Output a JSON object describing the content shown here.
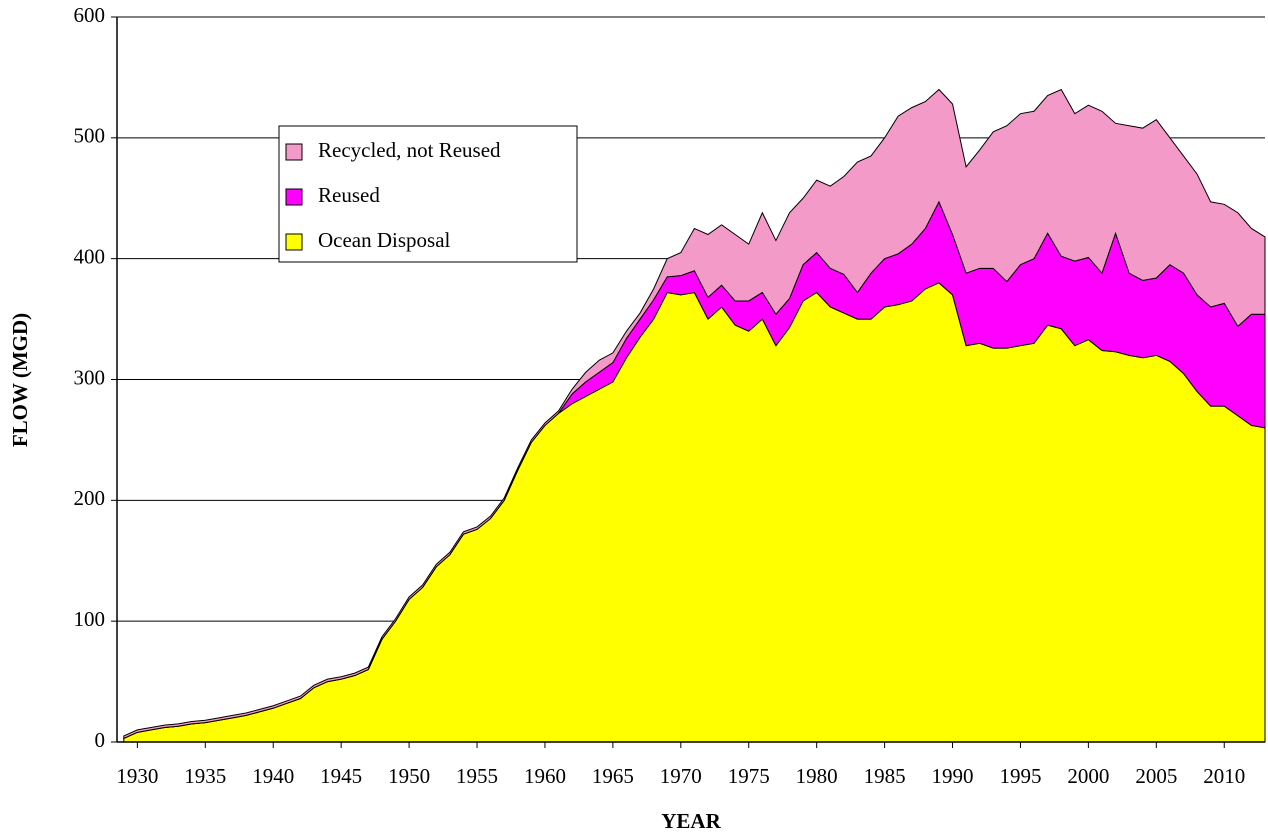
{
  "chart_data": {
    "type": "stacked_area",
    "x_label": "YEAR",
    "y_label": "FLOW (MGD)",
    "x": [
      1929,
      1930,
      1931,
      1932,
      1933,
      1934,
      1935,
      1936,
      1937,
      1938,
      1939,
      1940,
      1941,
      1942,
      1943,
      1944,
      1945,
      1946,
      1947,
      1948,
      1949,
      1950,
      1951,
      1952,
      1953,
      1954,
      1955,
      1956,
      1957,
      1958,
      1959,
      1960,
      1961,
      1962,
      1963,
      1964,
      1965,
      1966,
      1967,
      1968,
      1969,
      1970,
      1971,
      1972,
      1973,
      1974,
      1975,
      1976,
      1977,
      1978,
      1979,
      1980,
      1981,
      1982,
      1983,
      1984,
      1985,
      1986,
      1987,
      1988,
      1989,
      1990,
      1991,
      1992,
      1993,
      1994,
      1995,
      1996,
      1997,
      1998,
      1999,
      2000,
      2001,
      2002,
      2003,
      2004,
      2005,
      2006,
      2007,
      2008,
      2009,
      2010,
      2011,
      2012,
      2013
    ],
    "series": [
      {
        "name": "Ocean Disposal",
        "color": "#ffff00",
        "values": [
          3,
          8,
          10,
          12,
          13,
          15,
          16,
          18,
          20,
          22,
          25,
          28,
          32,
          36,
          45,
          50,
          52,
          55,
          60,
          85,
          100,
          118,
          128,
          145,
          155,
          172,
          176,
          185,
          200,
          225,
          248,
          262,
          272,
          280,
          286,
          292,
          298,
          318,
          335,
          350,
          372,
          370,
          372,
          350,
          360,
          345,
          340,
          350,
          328,
          343,
          365,
          372,
          360,
          355,
          350,
          350,
          360,
          362,
          365,
          375,
          380,
          370,
          328,
          330,
          326,
          326,
          328,
          330,
          345,
          342,
          328,
          333,
          324,
          323,
          320,
          318,
          320,
          315,
          305,
          290,
          278,
          278,
          270,
          262,
          260
        ]
      },
      {
        "name": "Reused",
        "color": "#ff00ff",
        "values": [
          0,
          0,
          0,
          0,
          0,
          0,
          0,
          0,
          0,
          0,
          0,
          0,
          0,
          0,
          0,
          0,
          0,
          0,
          0,
          0,
          0,
          0,
          0,
          0,
          0,
          0,
          0,
          0,
          0,
          0,
          0,
          0,
          0,
          8,
          12,
          14,
          16,
          16,
          15,
          16,
          13,
          16,
          18,
          18,
          18,
          20,
          25,
          22,
          26,
          24,
          30,
          33,
          32,
          32,
          22,
          38,
          40,
          42,
          47,
          50,
          67,
          50,
          60,
          62,
          66,
          55,
          67,
          70,
          76,
          60,
          70,
          68,
          64,
          98,
          68,
          64,
          64,
          80,
          83,
          80,
          82,
          85,
          74,
          92,
          94
        ]
      },
      {
        "name": "Recycled, not Reused",
        "color": "#f49ac8",
        "values": [
          2,
          2,
          2,
          2,
          2,
          2,
          2,
          2,
          2,
          2,
          2,
          2,
          2,
          2,
          2,
          2,
          2,
          2,
          2,
          2,
          2,
          2,
          2,
          2,
          2,
          2,
          2,
          2,
          2,
          2,
          2,
          2,
          2,
          4,
          8,
          10,
          8,
          6,
          5,
          9,
          15,
          19,
          35,
          52,
          50,
          55,
          47,
          66,
          61,
          71,
          55,
          60,
          68,
          81,
          108,
          97,
          100,
          114,
          113,
          105,
          93,
          108,
          88,
          98,
          113,
          129,
          125,
          122,
          114,
          138,
          122,
          126,
          134,
          91,
          122,
          126,
          131,
          105,
          97,
          100,
          87,
          82,
          94,
          71,
          64
        ]
      }
    ],
    "xlim": [
      1928.5,
      2013
    ],
    "xticks": [
      1930,
      1935,
      1940,
      1945,
      1950,
      1955,
      1960,
      1965,
      1970,
      1975,
      1980,
      1985,
      1990,
      1995,
      2000,
      2005,
      2010
    ],
    "ylim": [
      0,
      600
    ],
    "yticks": [
      0,
      100,
      200,
      300,
      400,
      500,
      600
    ],
    "grid": true
  }
}
